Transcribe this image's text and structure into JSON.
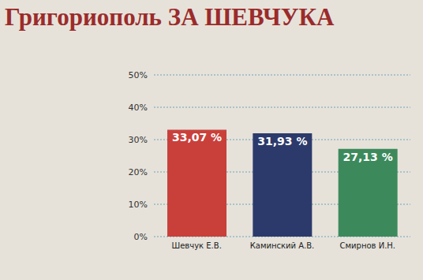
{
  "chart_data": {
    "type": "bar",
    "title": "Григориополь ЗА ШЕВЧУКА",
    "categories": [
      "Шевчук Е.В.",
      "Каминский А.В.",
      "Смирнов И.Н."
    ],
    "values": [
      33.07,
      31.93,
      27.13
    ],
    "value_labels": [
      "33,07 %",
      "31,93 %",
      "27,13 %"
    ],
    "colors": [
      "#c9403b",
      "#2c3a6b",
      "#3c8a5c"
    ],
    "ylim": [
      0,
      50
    ],
    "yticks": [
      {
        "value": 0,
        "label": "0%"
      },
      {
        "value": 10,
        "label": "10%"
      },
      {
        "value": 20,
        "label": "20%"
      },
      {
        "value": 30,
        "label": "30%"
      },
      {
        "value": 40,
        "label": "40%"
      },
      {
        "value": 50,
        "label": "50%"
      }
    ],
    "grid": true,
    "data_labels": true
  }
}
